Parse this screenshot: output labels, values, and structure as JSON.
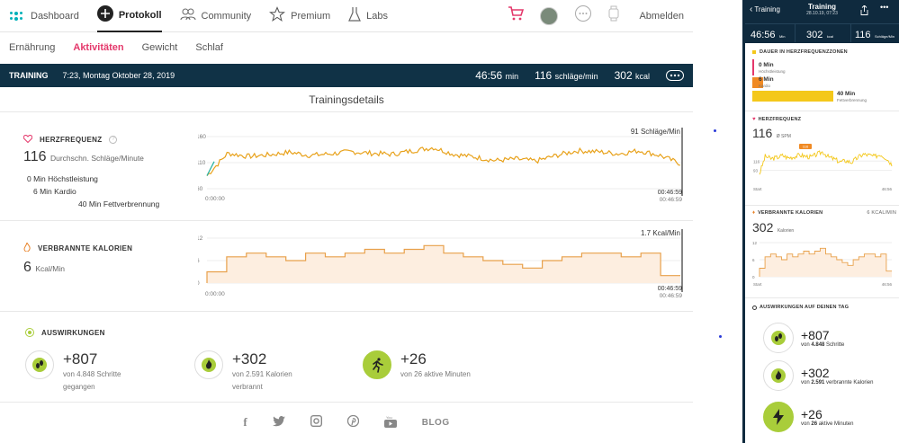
{
  "nav": {
    "dashboard": "Dashboard",
    "protokoll": "Protokoll",
    "community": "Community",
    "premium": "Premium",
    "labs": "Labs",
    "abmelden": "Abmelden"
  },
  "subnav": [
    "Ernährung",
    "Aktivitäten",
    "Gewicht",
    "Schlaf"
  ],
  "banner": {
    "label": "TRAINING",
    "datetime": "7:23, Montag Oktober 28, 2019",
    "duration": "46:56",
    "duration_unit": "min",
    "hr": "116",
    "hr_unit": "schläge/min",
    "kcal": "302",
    "kcal_unit": "kcal"
  },
  "details_title": "Trainingsdetails",
  "heart": {
    "label": "HERZFREQUENZ",
    "value": "116",
    "unit": "Durchschn. Schläge/Minute",
    "zone1": "0 Min Höchstleistung",
    "zone2": "6 Min Kardio",
    "zone3": "40 Min Fettverbrennung",
    "peak_label": "91 Schläge/Min",
    "t_start": "0:00:00",
    "t_end_top": "00:46:59",
    "t_end": "00:46:59",
    "y_ticks": [
      "160",
      "110",
      "60"
    ]
  },
  "calories": {
    "label": "VERBRANNTE KALORIEN",
    "value": "6",
    "unit": "Kcal/Min",
    "peak_label": "1.7 Kcal/Min",
    "t_start": "0:00:00",
    "t_end_top": "00:46:59",
    "t_end": "00:46:59",
    "y_ticks": [
      "12",
      "6",
      "0"
    ]
  },
  "impact": {
    "label": "AUSWIRKUNGEN",
    "items": [
      {
        "value": "+807",
        "sub1": "von 4.848 Schritte",
        "sub2": "gegangen"
      },
      {
        "value": "+302",
        "sub1": "von 2.591 Kalorien",
        "sub2": "verbrannt"
      },
      {
        "value": "+26",
        "sub1": "von 26 aktive Minuten",
        "sub2": ""
      }
    ]
  },
  "footer": {
    "blog": "BLOG"
  },
  "chart_data": [
    {
      "type": "line",
      "title": "HERZFREQUENZ",
      "ylim": [
        60,
        160
      ],
      "y_ticks": [
        60,
        110,
        160
      ],
      "x_start": "0:00:00",
      "x_end": "00:46:59",
      "x": [
        0,
        2,
        4,
        6,
        8,
        10,
        12,
        14,
        16,
        18,
        20,
        22,
        24,
        26,
        28,
        30,
        32,
        34,
        36,
        38,
        40,
        42,
        44,
        46
      ],
      "values": [
        85,
        128,
        122,
        125,
        130,
        124,
        127,
        131,
        128,
        126,
        133,
        139,
        126,
        121,
        114,
        117,
        113,
        124,
        133,
        131,
        127,
        133,
        124,
        108
      ]
    },
    {
      "type": "area",
      "title": "VERBRANNTE KALORIEN",
      "ylim": [
        0,
        12
      ],
      "y_ticks": [
        0,
        6,
        12
      ],
      "x_start": "0:00:00",
      "x_end": "00:46:59",
      "x": [
        0,
        2,
        4,
        6,
        8,
        10,
        12,
        14,
        16,
        18,
        20,
        22,
        24,
        26,
        28,
        30,
        32,
        34,
        36,
        38,
        40,
        42,
        44,
        46
      ],
      "values": [
        3,
        7,
        8,
        7,
        6,
        8,
        7,
        8,
        9,
        8,
        9,
        10,
        8,
        7,
        6,
        5,
        4,
        6,
        7,
        8,
        8,
        7,
        8,
        2
      ]
    }
  ],
  "mobile": {
    "back": "Training",
    "title": "Training",
    "date": "28.10.19, 07:23",
    "duration": "46:56",
    "duration_unit": "Min",
    "kcal": "302",
    "kcal_unit": "kcal",
    "hr": "116",
    "hr_unit": "Schläge/Min",
    "zones_label": "DAUER IN HERZFREQUENZZONEN",
    "z1_val": "0 Min",
    "z1_lbl": "Höchstleistung",
    "z2_val": "6 Min",
    "z2_lbl": "Kardio",
    "z3_val": "40 Min",
    "z3_lbl": "Fettverbrennung",
    "hr_label": "HERZFREQUENZ",
    "hr_value": "116",
    "hr_sub": "Ø SPM",
    "hr_badge": "116",
    "hr_ticks": [
      "116",
      "93"
    ],
    "t_start": "Start",
    "t_end": "46:56",
    "cal_label": "VERBRANNTE KALORIEN",
    "cal_side": "6 KCAL/MIN",
    "cal_value": "302",
    "cal_sub": "Kalorien",
    "cal_ticks": [
      "12",
      "6",
      "0"
    ],
    "impact_label": "AUSWIRKUNGEN AUF DEINEN TAG",
    "imp1_val": "+807",
    "imp1_sub_a": "von",
    "imp1_sub_b": "4.848",
    "imp1_sub_c": "Schritte",
    "imp2_val": "+302",
    "imp2_sub_a": "von",
    "imp2_sub_b": "2.591",
    "imp2_sub_c": "verbrannte Kalorien",
    "imp3_val": "+26",
    "imp3_sub_a": "von",
    "imp3_sub_b": "26",
    "imp3_sub_c": "aktive Minuten"
  },
  "colors": {
    "accent": "#e4386b",
    "banner": "#103246",
    "hr_line": "#e8a21c",
    "hr_low": "#2bb3a4",
    "cal_line": "#e8a04a",
    "cal_fill": "#fdeee0",
    "zone_yellow": "#f4c81b",
    "zone_orange": "#f08a24",
    "impact_green": "#a9cd3a"
  }
}
